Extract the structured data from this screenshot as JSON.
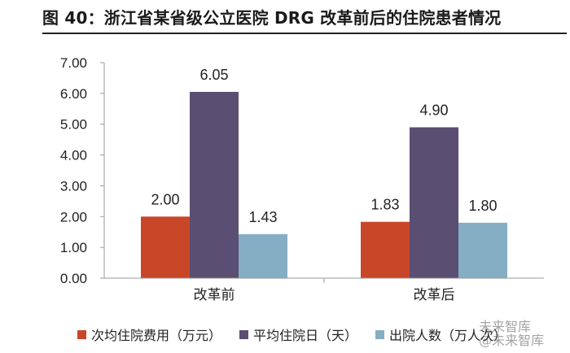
{
  "title": "图 40：浙江省某省级公立医院 DRG 改革前后的住院患者情况",
  "watermark": {
    "line1": "未来智库",
    "line2": "@未来智库"
  },
  "chart_data": {
    "type": "bar",
    "categories": [
      "改革前",
      "改革后"
    ],
    "series": [
      {
        "name": "次均住院费用（万元）",
        "values": [
          2.0,
          1.83
        ],
        "labels": [
          "2.00",
          "1.83"
        ],
        "color": "#c84728"
      },
      {
        "name": "平均住院日（天）",
        "values": [
          6.05,
          4.9
        ],
        "labels": [
          "6.05",
          "4.90"
        ],
        "color": "#5a4f72"
      },
      {
        "name": "出院人数（万人次）",
        "values": [
          1.43,
          1.8
        ],
        "labels": [
          "1.43",
          "1.80"
        ],
        "color": "#85aec5"
      }
    ],
    "ylim": [
      0,
      7
    ],
    "yticks": [
      "0.00",
      "1.00",
      "2.00",
      "3.00",
      "4.00",
      "5.00",
      "6.00",
      "7.00"
    ],
    "grid": false,
    "legend_position": "bottom"
  }
}
